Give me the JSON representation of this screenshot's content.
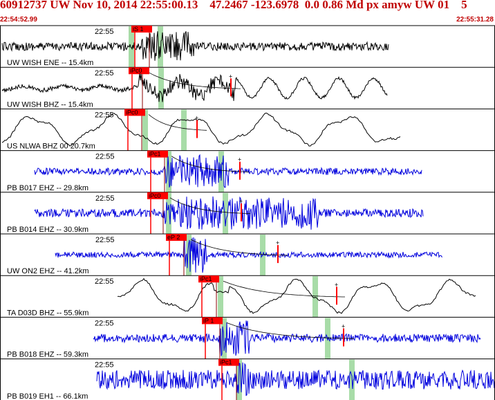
{
  "header": {
    "title": "60912737 UW Nov 10, 2014 22:55:00.13    47.2467 -123.6978  0.0 0.86 Md px amyw UW 01    5",
    "start_time": "22:54:52.99",
    "end_time": "22:55:31.28"
  },
  "colors": {
    "header_red": "#c00000",
    "phase_red": "#ff0000",
    "trace_black": "#000000",
    "trace_blue": "#0000dd",
    "window_green": "#a8dca8"
  },
  "tick_label": "22:55",
  "channels": [
    {
      "label": "UW WISH ENE -- 15.4km",
      "phase": "iS 1",
      "color": "black"
    },
    {
      "label": "UW WISH BHZ -- 15.4km",
      "phase": "iPc0",
      "color": "black"
    },
    {
      "label": "US NLWA BHZ 00 20.7km",
      "phase": "iPc0",
      "color": "black"
    },
    {
      "label": "PB B017 EHZ -- 29.8km",
      "phase": "iPc1",
      "color": "blue"
    },
    {
      "label": "PB B014 EHZ -- 30.9km",
      "phase": "iPc0",
      "color": "blue"
    },
    {
      "label": "UW ON2 EHZ -- 41.2km",
      "phase": "eP 2",
      "color": "blue"
    },
    {
      "label": "TA D03D BHZ -- 55.9km",
      "phase": "iPc1",
      "color": "black"
    },
    {
      "label": "PB B018 EHZ -- 59.3km",
      "phase": "iP 1",
      "color": "blue"
    },
    {
      "label": "PB B019 EH1 -- 66.1km",
      "phase": "iPc1",
      "color": "blue"
    }
  ]
}
